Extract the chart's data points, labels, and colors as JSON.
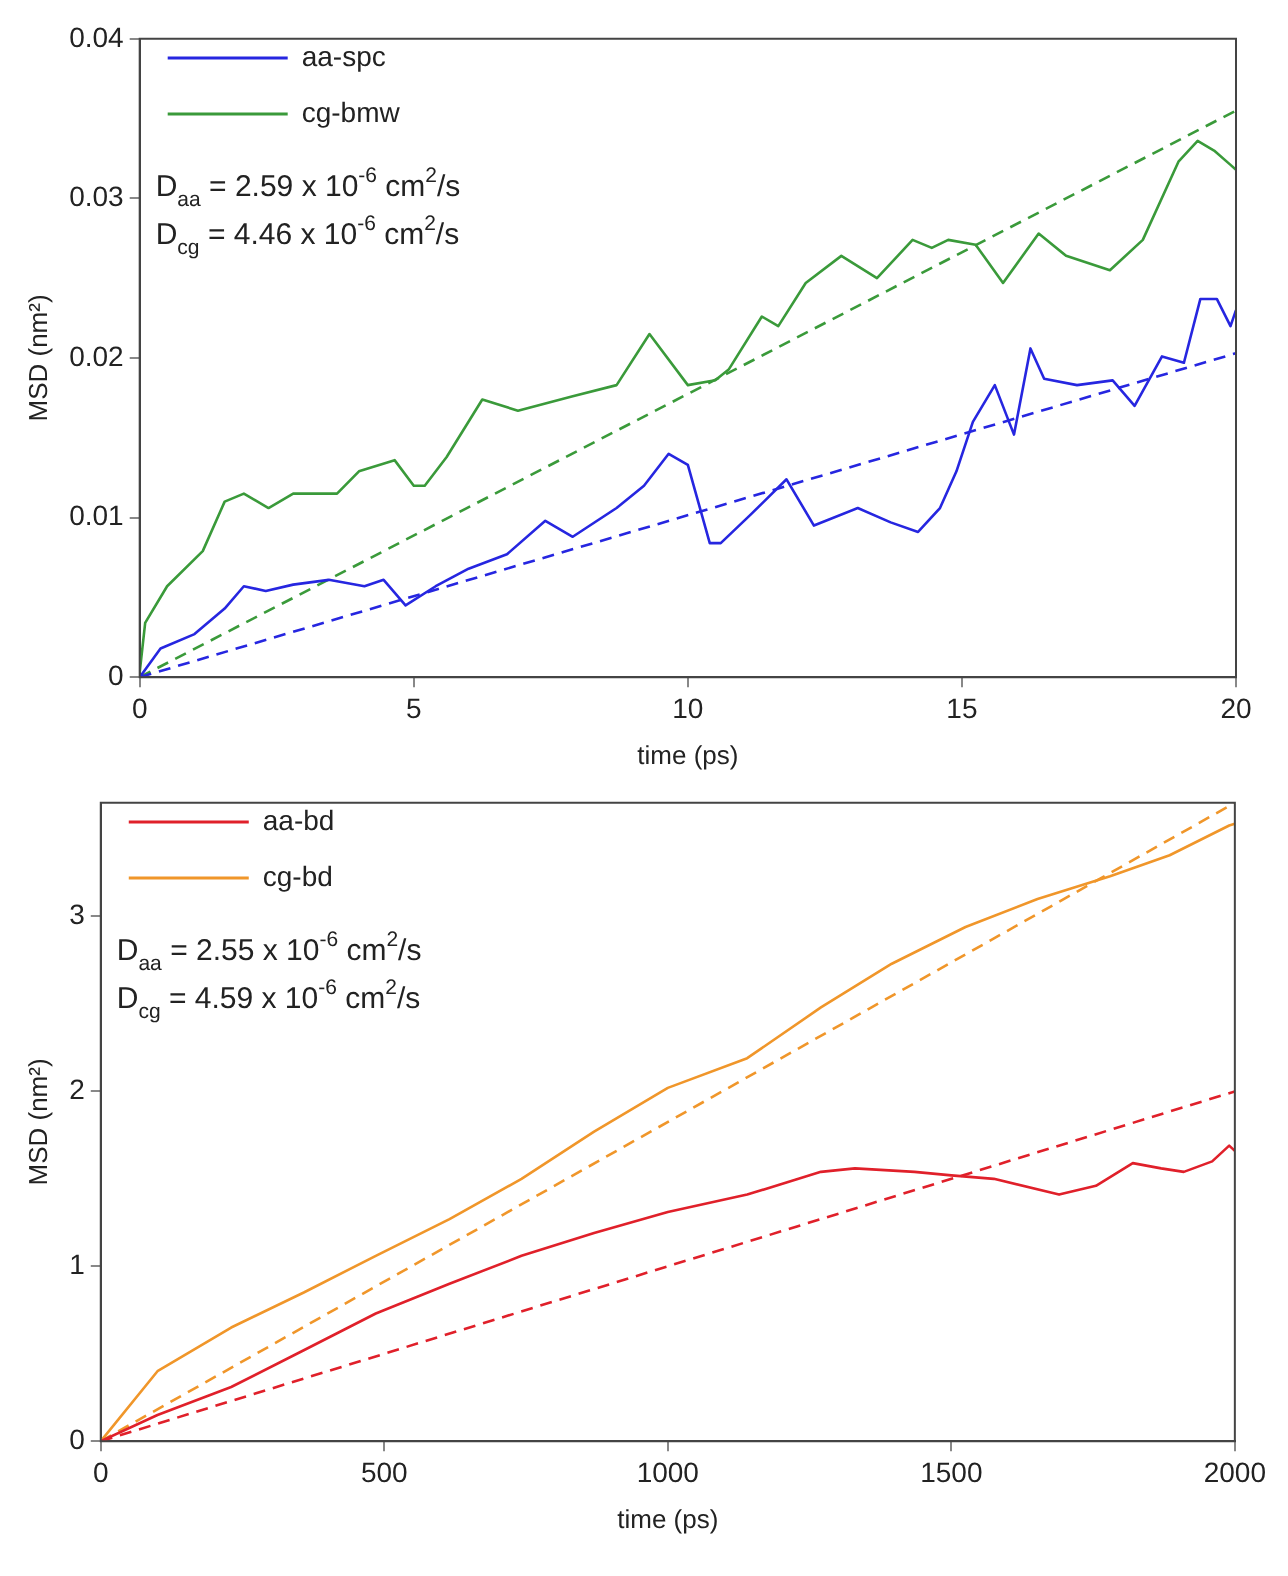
{
  "chart_data": [
    {
      "type": "line",
      "xlabel": "time (ps)",
      "ylabel": "MSD (nm²)",
      "xlim": [
        0,
        20
      ],
      "xticks": [
        0,
        5,
        10,
        15,
        20
      ],
      "ylim": [
        0,
        0.04
      ],
      "yticks": [
        0,
        0.01,
        0.02,
        0.03,
        0.04
      ],
      "grid": false,
      "legend": "top left",
      "marker": "none",
      "annotations": [
        "D$_{aa}$ = 2.59 x 10$^{-6}$ cm$^{2}$/s",
        "D$_{cg}$ = 4.46 x 10$^{-6}$ cm$^{2}$/s"
      ],
      "series": [
        {
          "name": "aa-spc",
          "color": "#2626e0",
          "line_style": "solid",
          "x": [
            0,
            0.38,
            1.0,
            1.55,
            1.9,
            2.3,
            2.8,
            3.45,
            4.1,
            4.45,
            4.85,
            5.4,
            6.0,
            6.7,
            7.4,
            7.9,
            8.7,
            9.2,
            9.65,
            10.0,
            10.4,
            10.6,
            11.15,
            11.8,
            12.3,
            13.1,
            13.7,
            14.2,
            14.6,
            14.9,
            15.2,
            15.6,
            15.95,
            16.25,
            16.5,
            17.1,
            17.75,
            18.15,
            18.65,
            19.05,
            19.35,
            19.65,
            19.9,
            20
          ],
          "values": [
            0,
            0.0018,
            0.0027,
            0.0043,
            0.0057,
            0.0054,
            0.0058,
            0.0061,
            0.0057,
            0.0061,
            0.0045,
            0.0057,
            0.0068,
            0.0077,
            0.0098,
            0.0088,
            0.0106,
            0.012,
            0.014,
            0.0133,
            0.0084,
            0.0084,
            0.0102,
            0.0124,
            0.0095,
            0.0106,
            0.0097,
            0.0091,
            0.0106,
            0.0129,
            0.016,
            0.0183,
            0.0152,
            0.0206,
            0.0187,
            0.0183,
            0.0186,
            0.017,
            0.0201,
            0.0197,
            0.0237,
            0.0237,
            0.022,
            0.023
          ]
        },
        {
          "name": "cg-bmw",
          "color": "#3a9a3a",
          "line_style": "solid",
          "x": [
            0,
            0.1,
            0.5,
            1.15,
            1.55,
            1.9,
            2.35,
            2.8,
            3.6,
            4.0,
            4.65,
            5.0,
            5.2,
            5.6,
            6.25,
            6.9,
            7.9,
            8.7,
            9.3,
            10.0,
            10.5,
            10.75,
            11.35,
            11.65,
            12.15,
            12.8,
            13.45,
            14.1,
            14.45,
            14.75,
            15.25,
            15.75,
            16.4,
            16.9,
            17.7,
            18.3,
            18.95,
            19.3,
            19.6,
            19.9,
            20
          ],
          "values": [
            0.0003,
            0.0034,
            0.0057,
            0.0079,
            0.011,
            0.0115,
            0.0106,
            0.0115,
            0.0115,
            0.0129,
            0.0136,
            0.012,
            0.012,
            0.0138,
            0.0174,
            0.0167,
            0.0176,
            0.0183,
            0.0215,
            0.0183,
            0.0186,
            0.0193,
            0.0226,
            0.022,
            0.0247,
            0.0264,
            0.025,
            0.0274,
            0.0269,
            0.0274,
            0.0271,
            0.0247,
            0.0278,
            0.0264,
            0.0255,
            0.0274,
            0.0323,
            0.0336,
            0.033,
            0.0321,
            0.0318
          ]
        },
        {
          "color": "#2626e0",
          "line_style": "dashed",
          "x": [
            0,
            20
          ],
          "values": [
            0,
            0.0203
          ]
        },
        {
          "color": "#3a9a3a",
          "line_style": "dashed",
          "x": [
            0,
            20
          ],
          "values": [
            0,
            0.0355
          ]
        }
      ]
    },
    {
      "type": "line",
      "xlabel": "time (ps)",
      "ylabel": "MSD (nm²)",
      "xlim": [
        0,
        2000
      ],
      "xticks": [
        0,
        500,
        1000,
        1500,
        2000
      ],
      "ylim": [
        0,
        3.65
      ],
      "yticks": [
        0,
        1,
        2,
        3
      ],
      "grid": false,
      "legend": "top left",
      "marker": "none",
      "annotations": [
        "D$_{aa}$ = 2.55 x 10$^{-6}$ cm$^{2}$/s",
        "D$_{cg}$ = 4.59 x 10$^{-6}$ cm$^{2}$/s"
      ],
      "series": [
        {
          "name": "aa-bd",
          "color": "#e0202a",
          "line_style": "solid",
          "x": [
            0,
            100,
            230,
            358,
            485,
            615,
            742,
            870,
            1000,
            1140,
            1270,
            1330,
            1435,
            1500,
            1575,
            1690,
            1755,
            1820,
            1870,
            1910,
            1960,
            1990,
            2000
          ],
          "values": [
            0,
            0.15,
            0.31,
            0.52,
            0.73,
            0.9,
            1.06,
            1.19,
            1.31,
            1.41,
            1.54,
            1.56,
            1.54,
            1.52,
            1.5,
            1.41,
            1.46,
            1.59,
            1.56,
            1.54,
            1.6,
            1.69,
            1.66
          ]
        },
        {
          "name": "cg-bd",
          "color": "#f0962a",
          "line_style": "solid",
          "x": [
            0,
            100,
            230,
            358,
            485,
            615,
            742,
            870,
            1000,
            1140,
            1270,
            1395,
            1525,
            1652,
            1780,
            1885,
            1990,
            2000
          ],
          "values": [
            0,
            0.4,
            0.65,
            0.85,
            1.06,
            1.27,
            1.5,
            1.77,
            2.02,
            2.19,
            2.48,
            2.73,
            2.94,
            3.1,
            3.23,
            3.35,
            3.52,
            3.53
          ]
        },
        {
          "color": "#e0202a",
          "line_style": "dashed",
          "x": [
            0,
            2000
          ],
          "values": [
            0,
            2.0
          ]
        },
        {
          "color": "#f0962a",
          "line_style": "dashed",
          "x": [
            0,
            2000
          ],
          "values": [
            0,
            3.65
          ]
        }
      ]
    }
  ]
}
